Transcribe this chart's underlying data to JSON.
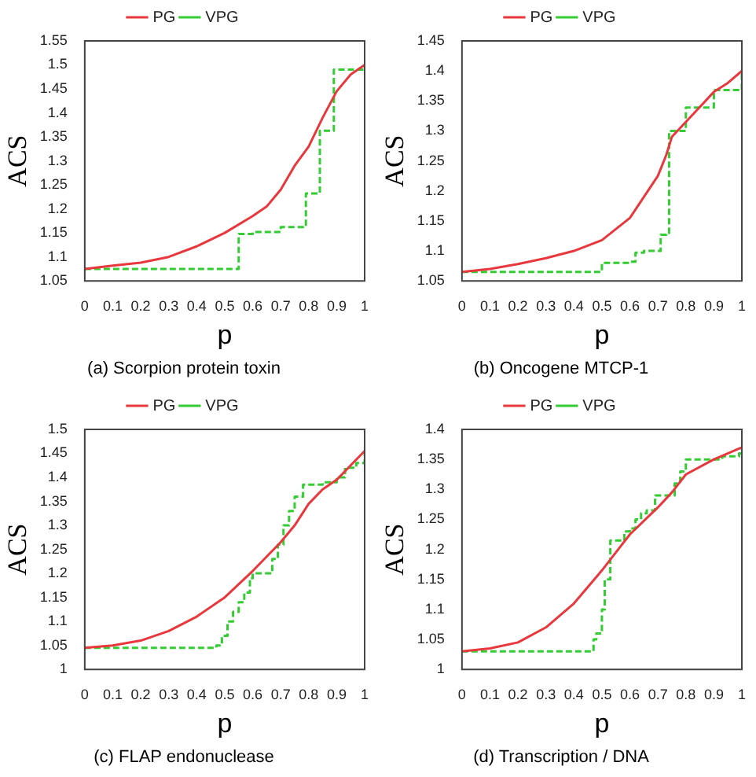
{
  "chart_data": [
    {
      "type": "line",
      "title": "(a) Scorpion protein toxin",
      "xlabel": "p",
      "ylabel": "ACS",
      "xlim": [
        0,
        1
      ],
      "xticks": [
        0,
        0.1,
        0.2,
        0.3,
        0.4,
        0.5,
        0.6,
        0.7,
        0.8,
        0.9,
        1
      ],
      "ylim": [
        1.05,
        1.55
      ],
      "yticks": [
        1.05,
        1.1,
        1.15,
        1.2,
        1.25,
        1.3,
        1.35,
        1.4,
        1.45,
        1.5,
        1.55
      ],
      "grid": false,
      "legend": "top",
      "marker": "none",
      "series": [
        {
          "name": "PG",
          "type": "line",
          "color": "#e8383d",
          "line_style": "solid",
          "x": [
            0,
            0.1,
            0.2,
            0.3,
            0.4,
            0.5,
            0.6,
            0.65,
            0.7,
            0.75,
            0.8,
            0.85,
            0.9,
            0.95,
            1
          ],
          "values": [
            1.075,
            1.082,
            1.088,
            1.1,
            1.122,
            1.15,
            1.185,
            1.205,
            1.24,
            1.29,
            1.33,
            1.39,
            1.445,
            1.48,
            1.5
          ]
        },
        {
          "name": "VPG",
          "type": "step",
          "color": "#33cc33",
          "line_style": "dashed",
          "x": [
            0,
            0.55,
            0.6,
            0.7,
            0.79,
            0.84,
            0.89,
            1
          ],
          "values": [
            1.075,
            1.148,
            1.152,
            1.162,
            1.232,
            1.363,
            1.49,
            1.5
          ]
        }
      ]
    },
    {
      "type": "line",
      "title": "(b) Oncogene MTCP-1",
      "xlabel": "p",
      "ylabel": "ACS",
      "xlim": [
        0,
        1
      ],
      "xticks": [
        0,
        0.1,
        0.2,
        0.3,
        0.4,
        0.5,
        0.6,
        0.7,
        0.8,
        0.9,
        1
      ],
      "ylim": [
        1.05,
        1.45
      ],
      "yticks": [
        1.05,
        1.1,
        1.15,
        1.2,
        1.25,
        1.3,
        1.35,
        1.4,
        1.45
      ],
      "grid": false,
      "legend": "top",
      "marker": "none",
      "series": [
        {
          "name": "PG",
          "type": "line",
          "color": "#e8383d",
          "line_style": "solid",
          "x": [
            0,
            0.1,
            0.2,
            0.3,
            0.4,
            0.5,
            0.6,
            0.65,
            0.7,
            0.73,
            0.75,
            0.8,
            0.85,
            0.9,
            0.95,
            1
          ],
          "values": [
            1.065,
            1.07,
            1.078,
            1.088,
            1.1,
            1.118,
            1.155,
            1.19,
            1.225,
            1.26,
            1.29,
            1.315,
            1.34,
            1.365,
            1.38,
            1.4
          ]
        },
        {
          "name": "VPG",
          "type": "step",
          "color": "#33cc33",
          "line_style": "dashed",
          "x": [
            0,
            0.5,
            0.6,
            0.62,
            0.65,
            0.71,
            0.73,
            0.74,
            0.8,
            0.9,
            1
          ],
          "values": [
            1.065,
            1.08,
            1.082,
            1.097,
            1.1,
            1.127,
            1.13,
            1.3,
            1.339,
            1.368,
            1.4
          ]
        }
      ]
    },
    {
      "type": "line",
      "title": "(c) FLAP endonuclease",
      "xlabel": "p",
      "ylabel": "ACS",
      "xlim": [
        0,
        1
      ],
      "xticks": [
        0,
        0.1,
        0.2,
        0.3,
        0.4,
        0.5,
        0.6,
        0.7,
        0.8,
        0.9,
        1
      ],
      "ylim": [
        1,
        1.5
      ],
      "yticks": [
        1,
        1.05,
        1.1,
        1.15,
        1.2,
        1.25,
        1.3,
        1.35,
        1.4,
        1.45,
        1.5
      ],
      "grid": false,
      "legend": "top",
      "marker": "none",
      "series": [
        {
          "name": "PG",
          "type": "line",
          "color": "#e8383d",
          "line_style": "solid",
          "x": [
            0,
            0.1,
            0.2,
            0.3,
            0.4,
            0.5,
            0.6,
            0.7,
            0.75,
            0.8,
            0.85,
            0.9,
            0.95,
            1
          ],
          "values": [
            1.045,
            1.05,
            1.06,
            1.08,
            1.11,
            1.15,
            1.205,
            1.265,
            1.3,
            1.345,
            1.375,
            1.395,
            1.425,
            1.455
          ]
        },
        {
          "name": "VPG",
          "type": "step",
          "color": "#33cc33",
          "line_style": "dashed",
          "x": [
            0,
            0.47,
            0.49,
            0.51,
            0.53,
            0.55,
            0.57,
            0.59,
            0.6,
            0.65,
            0.67,
            0.69,
            0.71,
            0.73,
            0.75,
            0.78,
            0.85,
            0.9,
            0.93,
            0.97,
            1
          ],
          "values": [
            1.045,
            1.05,
            1.07,
            1.1,
            1.12,
            1.14,
            1.16,
            1.19,
            1.2,
            1.2,
            1.23,
            1.26,
            1.3,
            1.33,
            1.36,
            1.385,
            1.39,
            1.4,
            1.42,
            1.43,
            1.455
          ]
        }
      ]
    },
    {
      "type": "line",
      "title": "(d) Transcription / DNA",
      "xlabel": "p",
      "ylabel": "ACS",
      "xlim": [
        0,
        1
      ],
      "xticks": [
        0,
        0.1,
        0.2,
        0.3,
        0.4,
        0.5,
        0.6,
        0.7,
        0.8,
        0.9,
        1
      ],
      "ylim": [
        1,
        1.4
      ],
      "yticks": [
        1,
        1.05,
        1.1,
        1.15,
        1.2,
        1.25,
        1.3,
        1.35,
        1.4
      ],
      "grid": false,
      "legend": "top",
      "marker": "none",
      "series": [
        {
          "name": "PG",
          "type": "line",
          "color": "#e8383d",
          "line_style": "solid",
          "x": [
            0,
            0.1,
            0.2,
            0.3,
            0.4,
            0.5,
            0.55,
            0.6,
            0.7,
            0.75,
            0.8,
            0.9,
            1
          ],
          "values": [
            1.03,
            1.035,
            1.045,
            1.07,
            1.11,
            1.165,
            1.195,
            1.225,
            1.27,
            1.295,
            1.325,
            1.35,
            1.37
          ]
        },
        {
          "name": "VPG",
          "type": "step",
          "color": "#33cc33",
          "line_style": "dashed",
          "x": [
            0,
            0.47,
            0.48,
            0.5,
            0.51,
            0.53,
            0.55,
            0.58,
            0.6,
            0.62,
            0.64,
            0.66,
            0.69,
            0.72,
            0.76,
            0.78,
            0.8,
            0.93,
            0.99,
            1
          ],
          "values": [
            1.03,
            1.05,
            1.06,
            1.1,
            1.15,
            1.215,
            1.215,
            1.23,
            1.235,
            1.25,
            1.26,
            1.265,
            1.29,
            1.29,
            1.31,
            1.33,
            1.35,
            1.355,
            1.36,
            1.37
          ]
        }
      ]
    }
  ]
}
